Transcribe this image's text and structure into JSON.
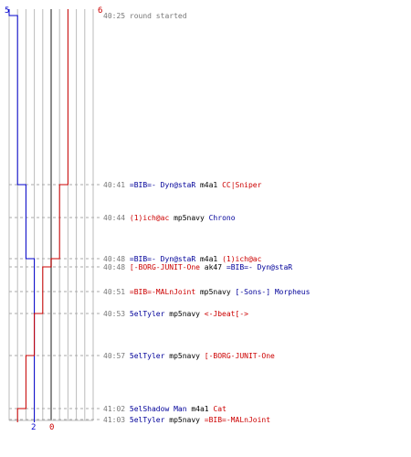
{
  "chart_data": {
    "type": "line",
    "x_start": 5,
    "x_end": 6,
    "axis_labels": [
      "2",
      "0"
    ],
    "series": [
      {
        "name": "",
        "color": "#0000cc",
        "steps": [
          5,
          4,
          3,
          3,
          2,
          2,
          2,
          2,
          2,
          2,
          2
        ]
      },
      {
        "name": "",
        "color": "#cc0000",
        "steps": [
          6,
          6,
          5,
          5,
          4,
          3,
          3,
          2,
          1,
          0,
          0
        ]
      }
    ],
    "events": [
      {
        "time": "40:25",
        "parts": [
          {
            "text": "round started",
            "c": "#777777"
          }
        ]
      },
      {
        "time": "40:41",
        "parts": [
          {
            "text": "=BIB=- Dyn@staR",
            "c": "#000099"
          },
          {
            "text": "m4a1",
            "c": "#000000"
          },
          {
            "text": "CC|Sniper",
            "c": "#cc0000"
          }
        ]
      },
      {
        "time": "40:44",
        "parts": [
          {
            "text": "(1)ich@ac",
            "c": "#cc0000"
          },
          {
            "text": "mp5navy",
            "c": "#000000"
          },
          {
            "text": "Chrono",
            "c": "#000099"
          }
        ]
      },
      {
        "time": "40:48",
        "parts": [
          {
            "text": "=BIB=- Dyn@staR",
            "c": "#000099"
          },
          {
            "text": "m4a1",
            "c": "#000000"
          },
          {
            "text": "(1)ich@ac",
            "c": "#cc0000"
          }
        ]
      },
      {
        "time": "40:48",
        "parts": [
          {
            "text": "[-BORG-JUNIT-One",
            "c": "#cc0000"
          },
          {
            "text": "ak47",
            "c": "#000000"
          },
          {
            "text": "=BIB=- Dyn@staR",
            "c": "#000099"
          }
        ]
      },
      {
        "time": "40:51",
        "parts": [
          {
            "text": "=BIB=-MALnJoint",
            "c": "#cc0000"
          },
          {
            "text": "mp5navy",
            "c": "#000000"
          },
          {
            "text": "[-Sons-] Morpheus",
            "c": "#000099"
          }
        ]
      },
      {
        "time": "40:53",
        "parts": [
          {
            "text": "5elTyler",
            "c": "#000099"
          },
          {
            "text": "mp5navy",
            "c": "#000000"
          },
          {
            "text": "<-Jbeat[->",
            "c": "#cc0000"
          }
        ]
      },
      {
        "time": "40:57",
        "parts": [
          {
            "text": "5elTyler",
            "c": "#000099"
          },
          {
            "text": "mp5navy",
            "c": "#000000"
          },
          {
            "text": "[-BORG-JUNIT-One",
            "c": "#cc0000"
          }
        ]
      },
      {
        "time": "41:02",
        "parts": [
          {
            "text": "5elShadow Man",
            "c": "#000099"
          },
          {
            "text": "m4a1",
            "c": "#000000"
          },
          {
            "text": "Cat",
            "c": "#cc0000"
          }
        ]
      },
      {
        "time": "41:03",
        "parts": [
          {
            "text": "5elTyler",
            "c": "#000099"
          },
          {
            "text": "mp5navy",
            "c": "#000000"
          },
          {
            "text": "=BIB=-MALnJoint",
            "c": "#cc0000"
          }
        ]
      }
    ]
  }
}
